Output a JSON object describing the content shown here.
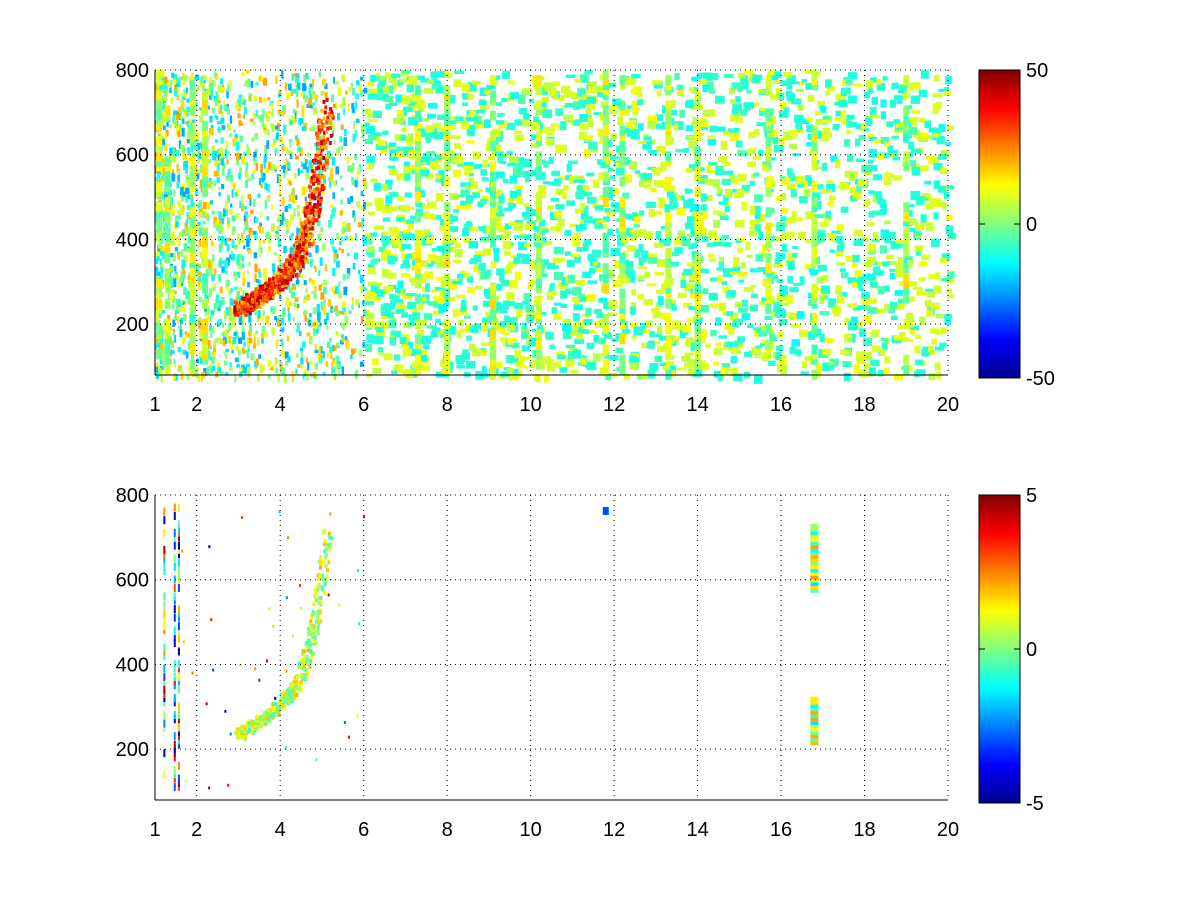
{
  "chart_data": [
    {
      "type": "heatmap",
      "title": "",
      "xlabel": "",
      "ylabel": "",
      "xlim": [
        1,
        20
      ],
      "ylim": [
        80,
        800
      ],
      "xticks": [
        "1",
        "2",
        "4",
        "6",
        "8",
        "10",
        "12",
        "14",
        "16",
        "18",
        "20"
      ],
      "yticks": [
        "200",
        "400",
        "600",
        "800"
      ],
      "grid": true,
      "colorbar": {
        "colormap": "jet",
        "range": [
          -50,
          50
        ],
        "ticks": [
          "-50",
          "0",
          "50"
        ]
      },
      "features": [
        {
          "desc": "curved ridge",
          "points": [
            [
              3.0,
              240
            ],
            [
              3.5,
              270
            ],
            [
              4.0,
              310
            ],
            [
              4.4,
              360
            ],
            [
              4.6,
              420
            ],
            [
              4.8,
              500
            ],
            [
              4.95,
              600
            ],
            [
              5.1,
              720
            ]
          ],
          "value": 35
        },
        {
          "desc": "vertical stripes",
          "x": [
            1.1,
            1.3,
            1.9,
            2.2,
            7.3,
            8.0,
            9.1,
            10.2,
            11.8,
            12.2,
            13.3,
            14.0,
            15.7,
            16.8,
            19.0
          ],
          "value": 5
        }
      ]
    },
    {
      "type": "heatmap",
      "title": "",
      "xlabel": "",
      "ylabel": "",
      "xlim": [
        1,
        20
      ],
      "ylim": [
        80,
        800
      ],
      "xticks": [
        "1",
        "2",
        "4",
        "6",
        "8",
        "10",
        "12",
        "14",
        "16",
        "18",
        "20"
      ],
      "yticks": [
        "200",
        "400",
        "600",
        "800"
      ],
      "grid": true,
      "colorbar": {
        "colormap": "jet",
        "range": [
          -5,
          5
        ],
        "ticks": [
          "-5",
          "0",
          "5"
        ]
      },
      "features": [
        {
          "desc": "curved ridge",
          "points": [
            [
              3.0,
              240
            ],
            [
              3.5,
              270
            ],
            [
              4.0,
              310
            ],
            [
              4.4,
              360
            ],
            [
              4.6,
              420
            ],
            [
              4.8,
              500
            ],
            [
              4.95,
              600
            ],
            [
              5.1,
              720
            ]
          ],
          "value": 0.5
        },
        {
          "desc": "stripe segments",
          "x": 16.8,
          "y_ranges": [
            [
              580,
              730
            ],
            [
              220,
              320
            ]
          ],
          "value": 1
        },
        {
          "desc": "blob",
          "x": 11.8,
          "y": 760,
          "value": -3
        }
      ]
    }
  ]
}
